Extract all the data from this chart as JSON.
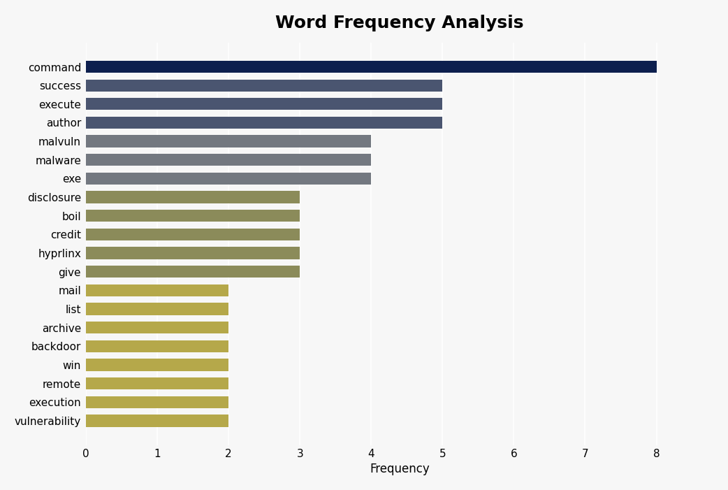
{
  "title": "Word Frequency Analysis",
  "xlabel": "Frequency",
  "categories": [
    "command",
    "success",
    "execute",
    "author",
    "malvuln",
    "malware",
    "exe",
    "disclosure",
    "boil",
    "credit",
    "hyprlinx",
    "give",
    "mail",
    "list",
    "archive",
    "backdoor",
    "win",
    "remote",
    "execution",
    "vulnerability"
  ],
  "values": [
    8,
    5,
    5,
    5,
    4,
    4,
    4,
    3,
    3,
    3,
    3,
    3,
    2,
    2,
    2,
    2,
    2,
    2,
    2,
    2
  ],
  "colors": [
    "#0d1f4e",
    "#4a5570",
    "#4a5570",
    "#4a5570",
    "#737880",
    "#737880",
    "#737880",
    "#8b8b5a",
    "#8b8b5a",
    "#8b8b5a",
    "#8b8b5a",
    "#8b8b5a",
    "#b5a84a",
    "#b5a84a",
    "#b5a84a",
    "#b5a84a",
    "#b5a84a",
    "#b5a84a",
    "#b5a84a",
    "#b5a84a"
  ],
  "xlim": [
    0,
    8.8
  ],
  "xticks": [
    0,
    1,
    2,
    3,
    4,
    5,
    6,
    7,
    8
  ],
  "background_color": "#f7f7f7",
  "plot_area_color": "#f7f7f7",
  "title_fontsize": 18,
  "label_fontsize": 12,
  "tick_fontsize": 11,
  "bar_height": 0.65
}
